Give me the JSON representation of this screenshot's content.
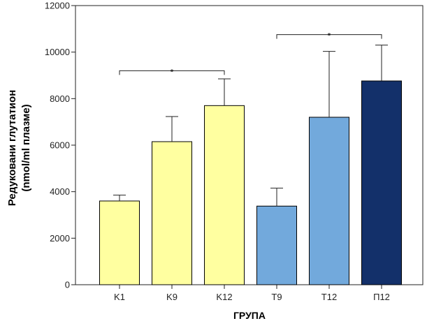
{
  "chart_data": {
    "type": "bar",
    "title": "",
    "xlabel": "ГРУПА",
    "ylabel_lines": [
      "Редуковани глутатион",
      "(nmol/ml плазме)"
    ],
    "categories": [
      "K1",
      "K9",
      "K12",
      "T9",
      "T12",
      "П12"
    ],
    "values": [
      3600,
      6150,
      7700,
      3380,
      7200,
      8760
    ],
    "error_upper": [
      3850,
      7230,
      8850,
      4150,
      10030,
      10300
    ],
    "bar_colors": [
      "#FFFFA0",
      "#FFFFA0",
      "#FFFFA0",
      "#72A9DC",
      "#72A9DC",
      "#13306A"
    ],
    "ylim": [
      0,
      12000
    ],
    "yticks": [
      0,
      2000,
      4000,
      6000,
      8000,
      10000,
      12000
    ],
    "ytick_labels": [
      "0",
      "2000",
      "4000",
      "6000",
      "8000",
      "10000",
      "12000"
    ],
    "grid": false,
    "significance": [
      {
        "from": "K1",
        "to": "K12",
        "level": 9200,
        "label": "*"
      },
      {
        "from": "T9",
        "to": "П12",
        "level": 10750,
        "label": "*"
      }
    ]
  }
}
